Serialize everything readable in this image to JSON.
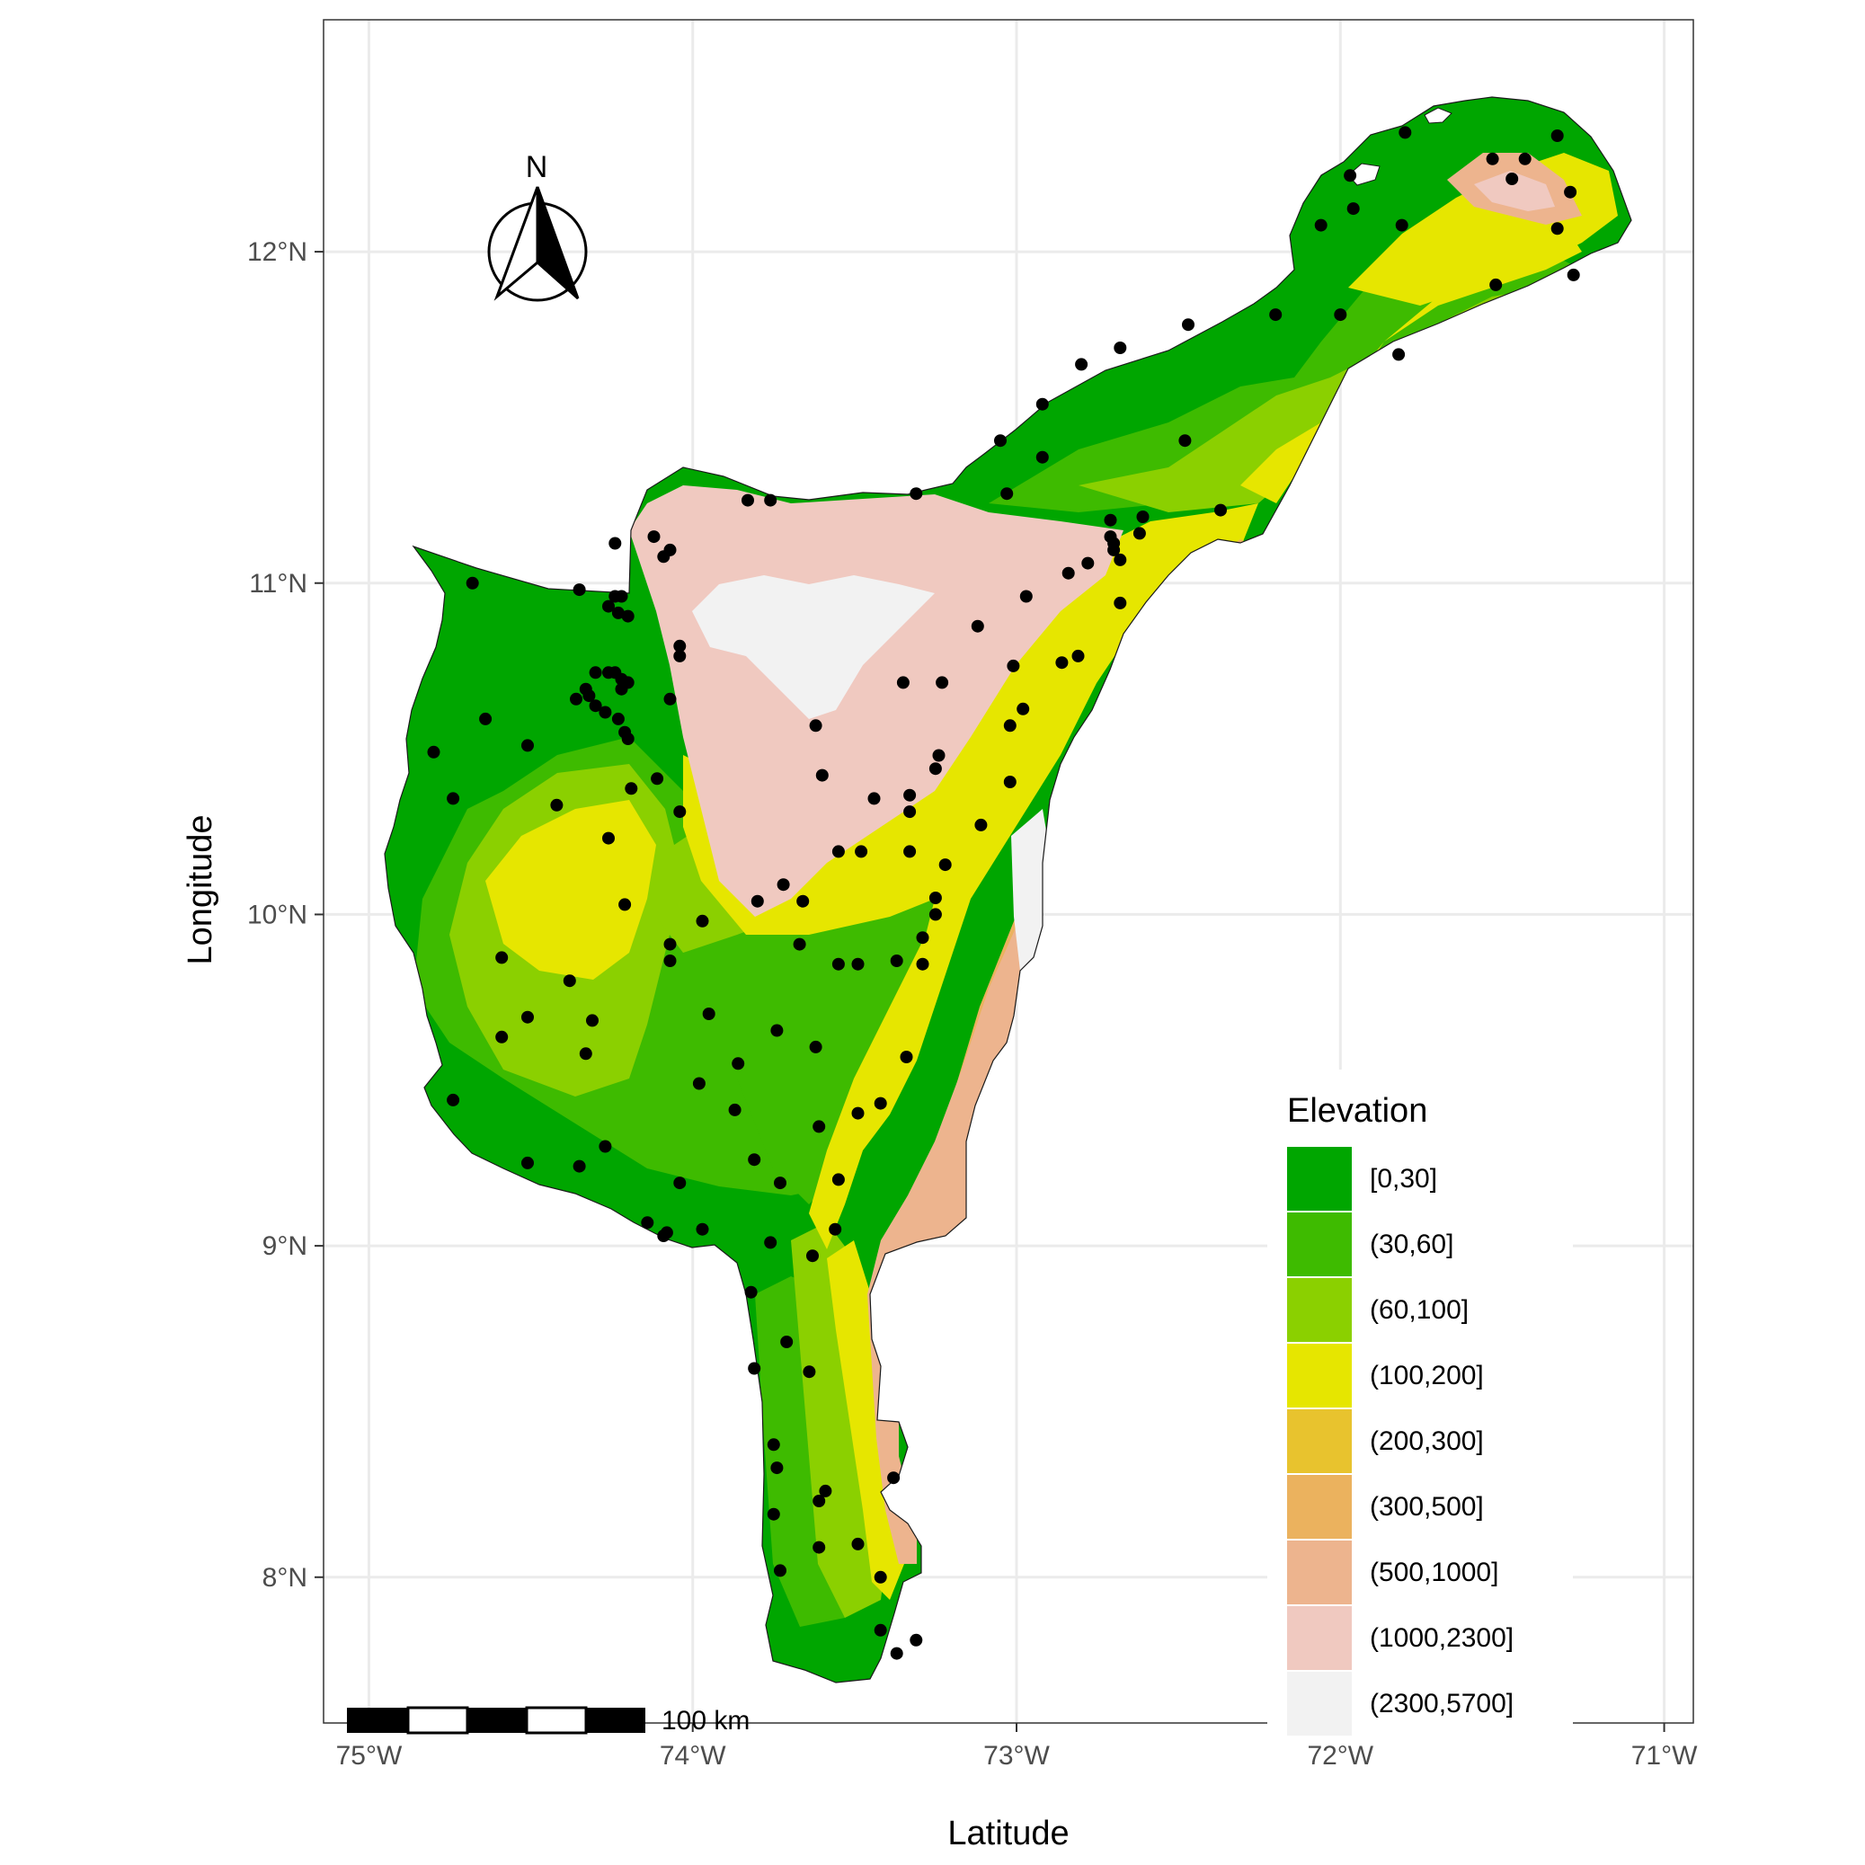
{
  "axes": {
    "xlabel": "Latitude",
    "ylabel": "Longitude",
    "xticks": [
      {
        "value": -75,
        "label": "75°W"
      },
      {
        "value": -74,
        "label": "74°W"
      },
      {
        "value": -73,
        "label": "73°W"
      },
      {
        "value": -72,
        "label": "72°W"
      },
      {
        "value": -71,
        "label": "71°W"
      }
    ],
    "yticks": [
      {
        "value": 8,
        "label": "8°N"
      },
      {
        "value": 9,
        "label": "9°N"
      },
      {
        "value": 10,
        "label": "10°N"
      },
      {
        "value": 11,
        "label": "11°N"
      },
      {
        "value": 12,
        "label": "12°N"
      }
    ],
    "xlim": [
      -75.14,
      -70.91
    ],
    "ylim": [
      7.56,
      12.7
    ]
  },
  "north_arrow": {
    "label": "N"
  },
  "scale_bar": {
    "label": "100 km"
  },
  "legend": {
    "title": "Elevation",
    "position": "bottom-right",
    "classes": [
      {
        "label": "[0,30]",
        "color": "#00a600"
      },
      {
        "label": "(30,60]",
        "color": "#3ebb00"
      },
      {
        "label": "(60,100]",
        "color": "#8bd000"
      },
      {
        "label": "(100,200]",
        "color": "#e6e600"
      },
      {
        "label": "(200,300]",
        "color": "#e8c32e"
      },
      {
        "label": "(300,500]",
        "color": "#ebb25e"
      },
      {
        "label": "(500,1000]",
        "color": "#edb48e"
      },
      {
        "label": "(1000,2300]",
        "color": "#f0c9c0"
      },
      {
        "label": "(2300,5700]",
        "color": "#f2f2f2"
      }
    ]
  },
  "stations": [
    [
      -74.68,
      11.0
    ],
    [
      -74.35,
      10.98
    ],
    [
      -74.24,
      10.96
    ],
    [
      -74.2,
      10.9
    ],
    [
      -74.26,
      10.93
    ],
    [
      -74.23,
      10.91
    ],
    [
      -74.22,
      10.96
    ],
    [
      -74.12,
      11.14
    ],
    [
      -74.09,
      11.08
    ],
    [
      -74.07,
      11.1
    ],
    [
      -74.24,
      11.12
    ],
    [
      -74.04,
      10.81
    ],
    [
      -74.04,
      10.78
    ],
    [
      -74.3,
      10.73
    ],
    [
      -74.26,
      10.73
    ],
    [
      -74.24,
      10.73
    ],
    [
      -74.22,
      10.68
    ],
    [
      -74.22,
      10.71
    ],
    [
      -74.2,
      10.7
    ],
    [
      -74.33,
      10.68
    ],
    [
      -74.32,
      10.66
    ],
    [
      -74.36,
      10.65
    ],
    [
      -74.3,
      10.63
    ],
    [
      -74.27,
      10.61
    ],
    [
      -74.23,
      10.59
    ],
    [
      -74.21,
      10.55
    ],
    [
      -74.2,
      10.53
    ],
    [
      -74.07,
      10.65
    ],
    [
      -74.64,
      10.59
    ],
    [
      -74.8,
      10.49
    ],
    [
      -74.51,
      10.51
    ],
    [
      -74.74,
      10.35
    ],
    [
      -74.42,
      10.33
    ],
    [
      -74.19,
      10.38
    ],
    [
      -74.11,
      10.41
    ],
    [
      -74.04,
      10.31
    ],
    [
      -74.26,
      10.23
    ],
    [
      -74.21,
      10.03
    ],
    [
      -74.59,
      9.87
    ],
    [
      -73.97,
      9.98
    ],
    [
      -74.07,
      9.91
    ],
    [
      -74.07,
      9.86
    ],
    [
      -74.38,
      9.8
    ],
    [
      -74.51,
      9.69
    ],
    [
      -74.31,
      9.68
    ],
    [
      -74.33,
      9.58
    ],
    [
      -74.59,
      9.63
    ],
    [
      -73.95,
      9.7
    ],
    [
      -73.74,
      9.65
    ],
    [
      -73.86,
      9.55
    ],
    [
      -73.98,
      9.49
    ],
    [
      -73.87,
      9.41
    ],
    [
      -74.74,
      9.44
    ],
    [
      -74.51,
      9.25
    ],
    [
      -74.35,
      9.24
    ],
    [
      -74.27,
      9.3
    ],
    [
      -73.81,
      9.26
    ],
    [
      -74.04,
      9.19
    ],
    [
      -73.73,
      9.19
    ],
    [
      -74.14,
      9.07
    ],
    [
      -74.08,
      9.04
    ],
    [
      -74.09,
      9.03
    ],
    [
      -73.97,
      9.05
    ],
    [
      -73.76,
      9.01
    ],
    [
      -73.63,
      8.97
    ],
    [
      -73.82,
      8.86
    ],
    [
      -73.81,
      8.63
    ],
    [
      -73.71,
      8.71
    ],
    [
      -73.64,
      8.62
    ],
    [
      -73.75,
      8.4
    ],
    [
      -73.74,
      8.33
    ],
    [
      -73.59,
      8.26
    ],
    [
      -73.61,
      8.23
    ],
    [
      -73.75,
      8.19
    ],
    [
      -73.61,
      8.09
    ],
    [
      -73.49,
      8.1
    ],
    [
      -73.73,
      8.02
    ],
    [
      -73.42,
      8.0
    ],
    [
      -73.42,
      7.84
    ],
    [
      -73.37,
      7.77
    ],
    [
      -73.31,
      7.81
    ],
    [
      -73.38,
      8.3
    ],
    [
      -73.56,
      9.05
    ],
    [
      -73.55,
      9.2
    ],
    [
      -73.49,
      9.4
    ],
    [
      -73.42,
      9.43
    ],
    [
      -73.62,
      9.6
    ],
    [
      -73.61,
      9.36
    ],
    [
      -73.34,
      9.57
    ],
    [
      -73.67,
      9.91
    ],
    [
      -73.55,
      9.85
    ],
    [
      -73.49,
      9.85
    ],
    [
      -73.37,
      9.86
    ],
    [
      -73.29,
      9.85
    ],
    [
      -73.29,
      9.93
    ],
    [
      -73.25,
      10.0
    ],
    [
      -73.25,
      10.05
    ],
    [
      -73.33,
      10.19
    ],
    [
      -73.48,
      10.19
    ],
    [
      -73.55,
      10.19
    ],
    [
      -73.22,
      10.15
    ],
    [
      -73.11,
      10.27
    ],
    [
      -73.33,
      10.31
    ],
    [
      -73.33,
      10.36
    ],
    [
      -73.44,
      10.35
    ],
    [
      -73.25,
      10.44
    ],
    [
      -73.24,
      10.48
    ],
    [
      -73.02,
      10.4
    ],
    [
      -72.98,
      10.62
    ],
    [
      -73.02,
      10.57
    ],
    [
      -73.01,
      10.75
    ],
    [
      -73.23,
      10.7
    ],
    [
      -73.35,
      10.7
    ],
    [
      -72.97,
      10.96
    ],
    [
      -73.12,
      10.87
    ],
    [
      -72.86,
      10.76
    ],
    [
      -72.81,
      10.78
    ],
    [
      -72.68,
      10.94
    ],
    [
      -72.68,
      11.07
    ],
    [
      -72.7,
      11.1
    ],
    [
      -72.7,
      11.12
    ],
    [
      -72.71,
      11.14
    ],
    [
      -72.62,
      11.15
    ],
    [
      -72.61,
      11.2
    ],
    [
      -72.84,
      11.03
    ],
    [
      -72.78,
      11.06
    ],
    [
      -72.71,
      11.19
    ],
    [
      -72.37,
      11.22
    ],
    [
      -73.62,
      10.57
    ],
    [
      -73.6,
      10.42
    ],
    [
      -73.72,
      10.09
    ],
    [
      -73.8,
      10.04
    ],
    [
      -73.66,
      10.04
    ],
    [
      -73.83,
      11.25
    ],
    [
      -73.76,
      11.25
    ],
    [
      -73.31,
      11.27
    ],
    [
      -73.03,
      11.27
    ],
    [
      -73.05,
      11.43
    ],
    [
      -72.92,
      11.38
    ],
    [
      -72.92,
      11.54
    ],
    [
      -72.8,
      11.66
    ],
    [
      -72.68,
      11.71
    ],
    [
      -72.47,
      11.78
    ],
    [
      -72.48,
      11.43
    ],
    [
      -72.2,
      11.81
    ],
    [
      -72.0,
      11.81
    ],
    [
      -71.82,
      11.69
    ],
    [
      -72.06,
      12.08
    ],
    [
      -71.97,
      12.23
    ],
    [
      -71.96,
      12.13
    ],
    [
      -71.81,
      12.08
    ],
    [
      -71.8,
      12.36
    ],
    [
      -71.53,
      12.28
    ],
    [
      -71.47,
      12.22
    ],
    [
      -71.43,
      12.28
    ],
    [
      -71.33,
      12.35
    ],
    [
      -71.29,
      12.18
    ],
    [
      -71.33,
      12.07
    ],
    [
      -71.52,
      11.9
    ],
    [
      -71.28,
      11.93
    ]
  ]
}
